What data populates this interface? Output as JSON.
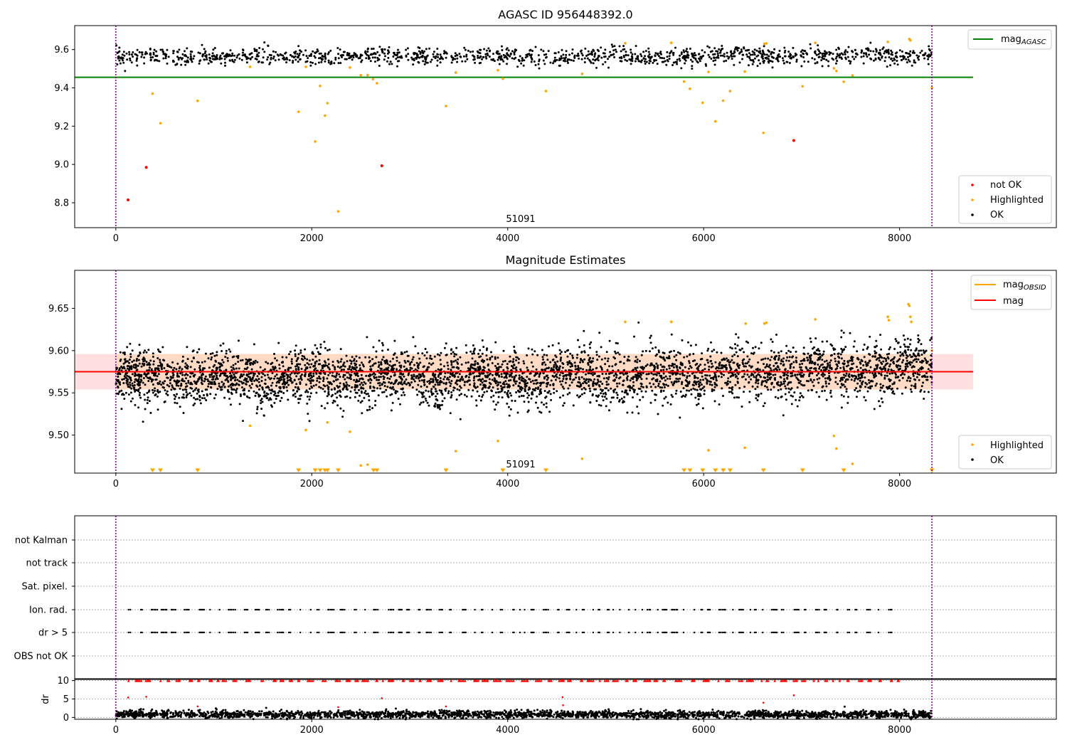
{
  "colors": {
    "ok": "#000000",
    "not_ok": "#ff0000",
    "highlighted": "#ffa500",
    "mag_agasc": "#008000",
    "mag": "#ff0000",
    "mag_obsid": "#ffa500",
    "band": "#ffc0c0",
    "obs_line": "#800080",
    "grid": "#b0b0b0"
  },
  "chart_data": [
    {
      "type": "scatter",
      "title": "AGASC ID 956448392.0",
      "xlim": [
        -420,
        9600
      ],
      "ylim": [
        8.67,
        9.725
      ],
      "x_ticks": [
        0,
        2000,
        4000,
        6000,
        8000
      ],
      "x_tick_labels": [
        "0",
        "2000",
        "4000",
        "6000",
        "8000"
      ],
      "y_ticks": [
        8.8,
        9.0,
        9.2,
        9.4,
        9.6
      ],
      "y_tick_labels": [
        "8.8",
        "9.0",
        "9.2",
        "9.4",
        "9.6"
      ],
      "obsid_boundaries": [
        0,
        8330
      ],
      "obsid_label": "51091",
      "obsid_label_x": 4160,
      "mag_agasc": 9.455,
      "mag_agasc_xrange": [
        -420,
        8750
      ],
      "ok_band": {
        "x_range": [
          0,
          8330
        ],
        "center": 9.575,
        "spread": 0.022,
        "count": 1400
      },
      "not_ok": [
        [
          125,
          8.815
        ],
        [
          310,
          8.985
        ],
        [
          2715,
          8.993
        ],
        [
          6920,
          9.125
        ]
      ],
      "highlighted": [
        [
          375,
          9.37
        ],
        [
          455,
          9.215
        ],
        [
          835,
          9.332
        ],
        [
          1865,
          9.275
        ],
        [
          1940,
          9.51
        ],
        [
          2035,
          9.12
        ],
        [
          2085,
          9.41
        ],
        [
          2135,
          9.255
        ],
        [
          2160,
          9.32
        ],
        [
          2270,
          8.755
        ],
        [
          2390,
          9.506
        ],
        [
          2500,
          9.466
        ],
        [
          2570,
          9.467
        ],
        [
          2625,
          9.446
        ],
        [
          2665,
          9.424
        ],
        [
          3370,
          9.305
        ],
        [
          3470,
          9.48
        ],
        [
          3900,
          9.492
        ],
        [
          3950,
          9.448
        ],
        [
          4390,
          9.383
        ],
        [
          4760,
          9.473
        ],
        [
          5800,
          9.433
        ],
        [
          5860,
          9.395
        ],
        [
          5990,
          9.322
        ],
        [
          6050,
          9.483
        ],
        [
          6120,
          9.225
        ],
        [
          6200,
          9.333
        ],
        [
          6270,
          9.383
        ],
        [
          6420,
          9.485
        ],
        [
          6610,
          9.165
        ],
        [
          7010,
          9.408
        ],
        [
          7330,
          9.502
        ],
        [
          7355,
          9.488
        ],
        [
          7430,
          9.432
        ],
        [
          7520,
          9.465
        ],
        [
          1370,
          9.51
        ],
        [
          5200,
          9.633
        ],
        [
          5670,
          9.635
        ],
        [
          6620,
          9.63
        ],
        [
          6640,
          9.632
        ],
        [
          7140,
          9.635
        ],
        [
          7880,
          9.64
        ],
        [
          8100,
          9.655
        ],
        [
          8110,
          9.648
        ],
        [
          8330,
          9.4
        ]
      ],
      "legend_line": [
        {
          "label": "mag",
          "sub": "AGASC",
          "color": "#008000"
        }
      ],
      "legend_points": [
        {
          "label": "not OK",
          "color": "#ff0000"
        },
        {
          "label": "Highlighted",
          "color": "#ffa500"
        },
        {
          "label": "OK",
          "color": "#000000"
        }
      ]
    },
    {
      "type": "scatter",
      "title": "Magnitude Estimates",
      "xlim": [
        -420,
        9600
      ],
      "ylim": [
        9.455,
        9.695
      ],
      "x_ticks": [
        0,
        2000,
        4000,
        6000,
        8000
      ],
      "x_tick_labels": [
        "0",
        "2000",
        "4000",
        "6000",
        "8000"
      ],
      "y_ticks": [
        9.5,
        9.55,
        9.6,
        9.65
      ],
      "y_tick_labels": [
        "9.50",
        "9.55",
        "9.60",
        "9.65"
      ],
      "obsid_boundaries": [
        0,
        8330
      ],
      "obsid_label": "51091",
      "obsid_label_x": 4160,
      "mag": 9.575,
      "mag_xrange": [
        -420,
        8750
      ],
      "mag_band": [
        9.554,
        9.596
      ],
      "mag_obsid": 9.575,
      "mag_obsid_xrange": [
        0,
        8330
      ],
      "ok_band": {
        "x_range": [
          0,
          8330
        ],
        "center": 9.572,
        "spread": 0.016,
        "count": 4200
      },
      "highlighted": [
        [
          1370,
          9.511
        ],
        [
          1940,
          9.506
        ],
        [
          2160,
          9.515
        ],
        [
          2390,
          9.504
        ],
        [
          2500,
          9.464
        ],
        [
          2570,
          9.465
        ],
        [
          3470,
          9.481
        ],
        [
          3900,
          9.493
        ],
        [
          4760,
          9.472
        ],
        [
          5200,
          9.634
        ],
        [
          5670,
          9.634
        ],
        [
          6050,
          9.482
        ],
        [
          6420,
          9.485
        ],
        [
          6430,
          9.632
        ],
        [
          6620,
          9.632
        ],
        [
          6640,
          9.633
        ],
        [
          7140,
          9.637
        ],
        [
          7330,
          9.499
        ],
        [
          7355,
          9.484
        ],
        [
          7520,
          9.466
        ],
        [
          7880,
          9.64
        ],
        [
          7890,
          9.636
        ],
        [
          8090,
          9.655
        ],
        [
          8100,
          9.653
        ],
        [
          8110,
          9.64
        ],
        [
          8120,
          9.634
        ],
        [
          8330,
          9.6
        ]
      ],
      "highlighted_below": [
        375,
        455,
        835,
        1865,
        2035,
        2085,
        2135,
        2160,
        2270,
        2630,
        2665,
        3370,
        3950,
        4390,
        5800,
        5860,
        5990,
        6120,
        6200,
        6270,
        6610,
        7010,
        7430,
        8330
      ],
      "legend_line": [
        {
          "label": "mag",
          "sub": "OBSID",
          "color": "#ffa500"
        },
        {
          "label": "mag",
          "sub": "",
          "color": "#ff0000"
        }
      ],
      "legend_points": [
        {
          "label": "Highlighted",
          "color": "#ffa500"
        },
        {
          "label": "OK",
          "color": "#000000"
        }
      ]
    },
    {
      "type": "scatter",
      "title": "",
      "xlim": [
        -420,
        9600
      ],
      "categories": [
        "not Kalman",
        "not track",
        "Sat. pixel.",
        "Ion. rad.",
        "dr > 5",
        "OBS not OK"
      ],
      "flag_x_range": [
        130,
        8000
      ],
      "flag_rows_with_points": [
        "Ion. rad.",
        "dr > 5"
      ],
      "obsid_boundaries": [
        0,
        8330
      ]
    },
    {
      "type": "scatter",
      "title": "",
      "xlim": [
        -420,
        9600
      ],
      "ylim": [
        -0.5,
        10.5
      ],
      "ylabel": "dr",
      "x_ticks": [
        0,
        2000,
        4000,
        6000,
        8000
      ],
      "x_tick_labels": [
        "0",
        "2000",
        "4000",
        "6000",
        "8000"
      ],
      "y_ticks": [
        0,
        5,
        10
      ],
      "y_tick_labels": [
        "0",
        "5",
        "10"
      ],
      "obsid_boundaries": [
        0,
        8330
      ],
      "ok_band": {
        "x_range": [
          0,
          8330
        ],
        "center": 0.8,
        "spread": 0.5,
        "count": 2500
      },
      "capped_value": 10,
      "capped_x_range": [
        130,
        8000
      ],
      "outliers": [
        [
          125,
          5.4
        ],
        [
          310,
          5.6
        ],
        [
          835,
          3.0
        ],
        [
          2270,
          2.8
        ],
        [
          2715,
          5.2
        ],
        [
          3370,
          3.0
        ],
        [
          4560,
          5.5
        ],
        [
          4565,
          3.3
        ],
        [
          6610,
          4.0
        ],
        [
          6920,
          6.0
        ]
      ]
    }
  ]
}
